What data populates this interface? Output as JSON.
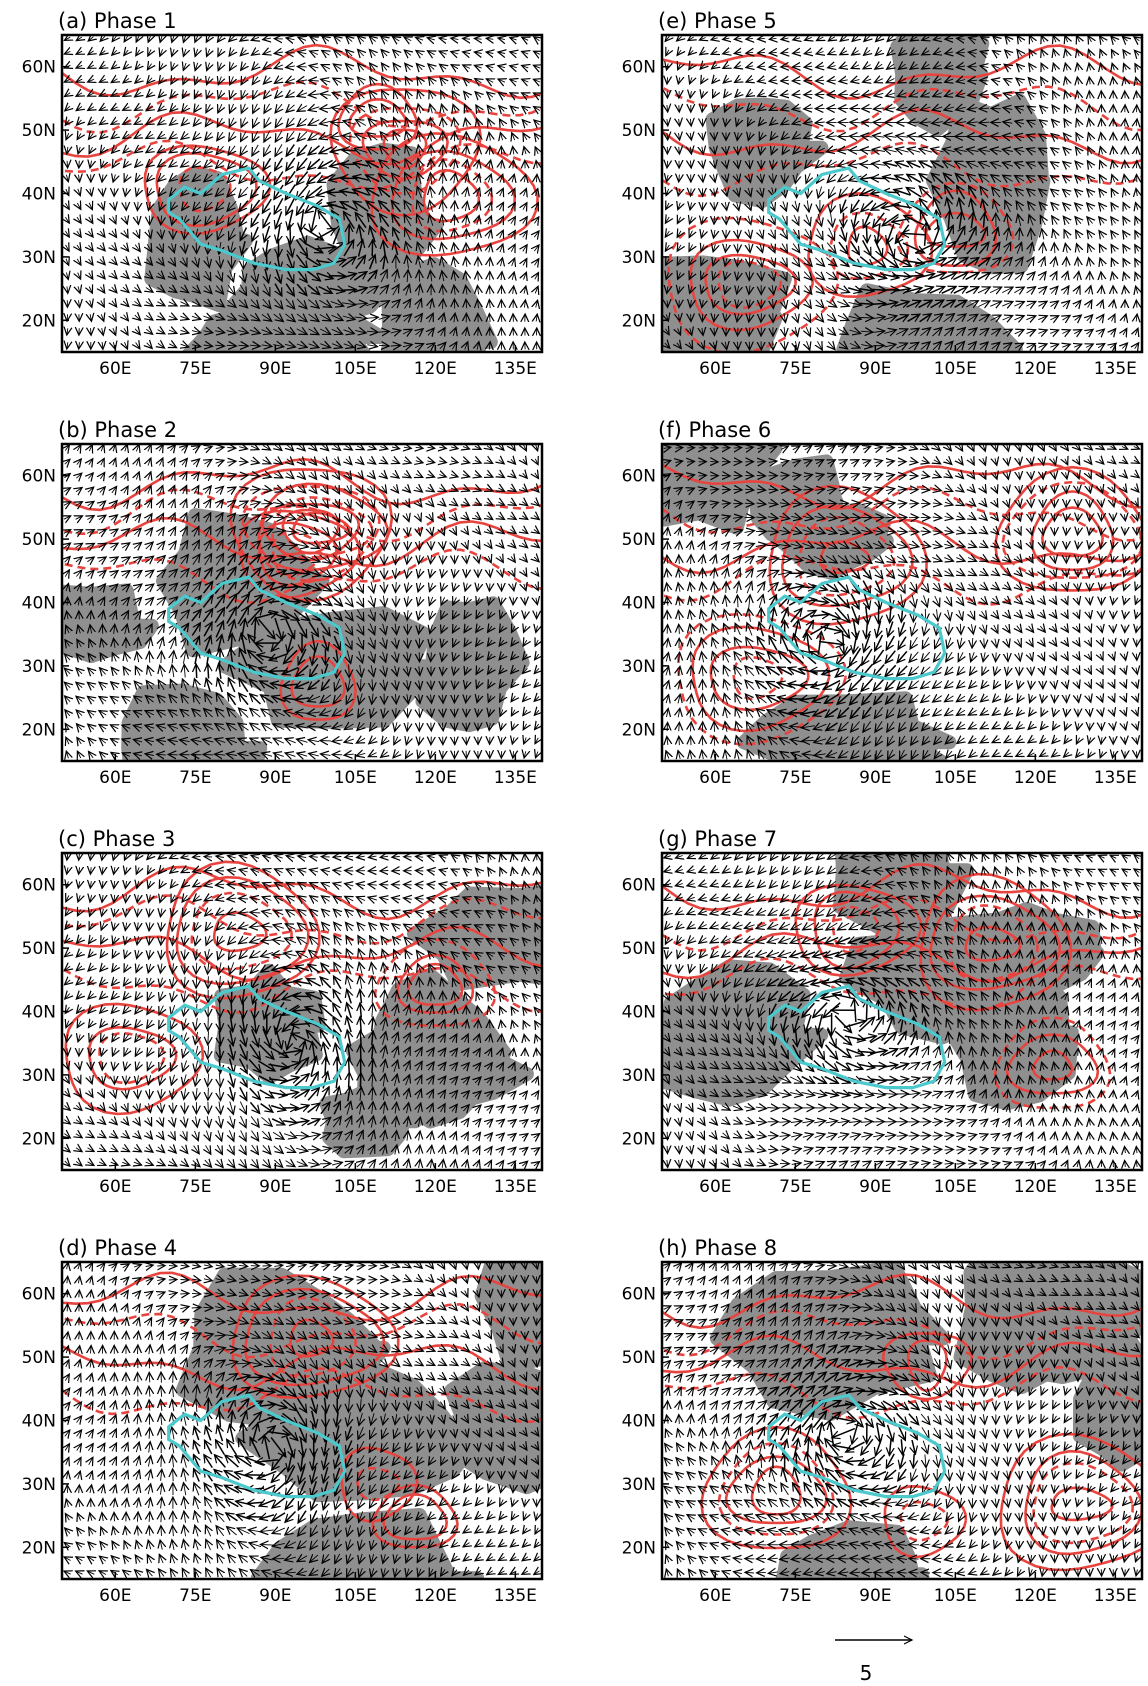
{
  "panels": [
    {
      "id": "a",
      "title": "(a) Phase 1",
      "seed": 11
    },
    {
      "id": "b",
      "title": "(b) Phase 2",
      "seed": 23
    },
    {
      "id": "c",
      "title": "(c) Phase 3",
      "seed": 37
    },
    {
      "id": "d",
      "title": "(d) Phase 4",
      "seed": 41
    },
    {
      "id": "e",
      "title": "(e) Phase 5",
      "seed": 53
    },
    {
      "id": "f",
      "title": "(f) Phase 6",
      "seed": 67
    },
    {
      "id": "g",
      "title": "(g) Phase 7",
      "seed": 71
    },
    {
      "id": "h",
      "title": "(h) Phase 8",
      "seed": 89
    }
  ],
  "axes": {
    "lon_range": [
      50,
      140
    ],
    "lat_range": [
      15,
      65
    ],
    "lon_ticks": [
      60,
      75,
      90,
      105,
      120,
      135
    ],
    "lon_tick_labels": [
      "60E",
      "75E",
      "90E",
      "105E",
      "120E",
      "135E"
    ],
    "lat_ticks": [
      20,
      30,
      40,
      50,
      60
    ],
    "lat_tick_labels": [
      "20N",
      "30N",
      "40N",
      "50N",
      "60N"
    ]
  },
  "reference_vector": {
    "label": "5"
  },
  "colors": {
    "shading": "#8f8f8f",
    "contour": "#e8443f",
    "region_outline": "#4cc9cd",
    "vector": "#000000",
    "frame": "#000000"
  },
  "region_outline": [
    [
      70,
      39
    ],
    [
      73,
      41
    ],
    [
      76,
      40
    ],
    [
      80,
      43
    ],
    [
      85,
      44
    ],
    [
      87,
      42
    ],
    [
      92,
      40
    ],
    [
      98,
      38
    ],
    [
      102,
      36
    ],
    [
      103,
      32
    ],
    [
      101,
      29
    ],
    [
      97,
      28
    ],
    [
      92,
      28
    ],
    [
      86,
      29
    ],
    [
      80,
      31
    ],
    [
      76,
      32
    ],
    [
      74,
      34
    ],
    [
      72,
      36
    ],
    [
      70,
      37
    ]
  ]
}
